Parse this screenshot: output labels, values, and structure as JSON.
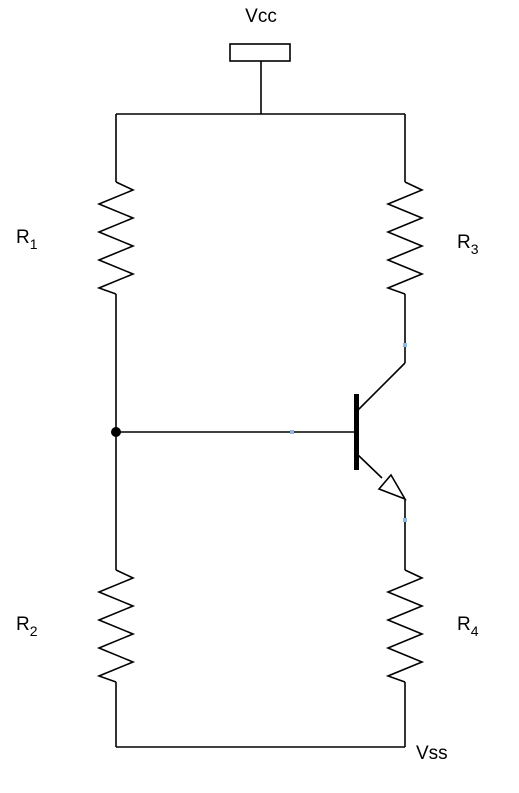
{
  "supply": {
    "top_label": "Vcc",
    "bottom_label": "Vss"
  },
  "resistors": [
    {
      "id": "r1",
      "letter": "R",
      "index": "1"
    },
    {
      "id": "r2",
      "letter": "R",
      "index": "2"
    },
    {
      "id": "r3",
      "letter": "R",
      "index": "3"
    },
    {
      "id": "r4",
      "letter": "R",
      "index": "4"
    }
  ],
  "colors": {
    "stroke": "#000000",
    "background": "#ffffff",
    "connection_marker": "#8fb8e8"
  }
}
